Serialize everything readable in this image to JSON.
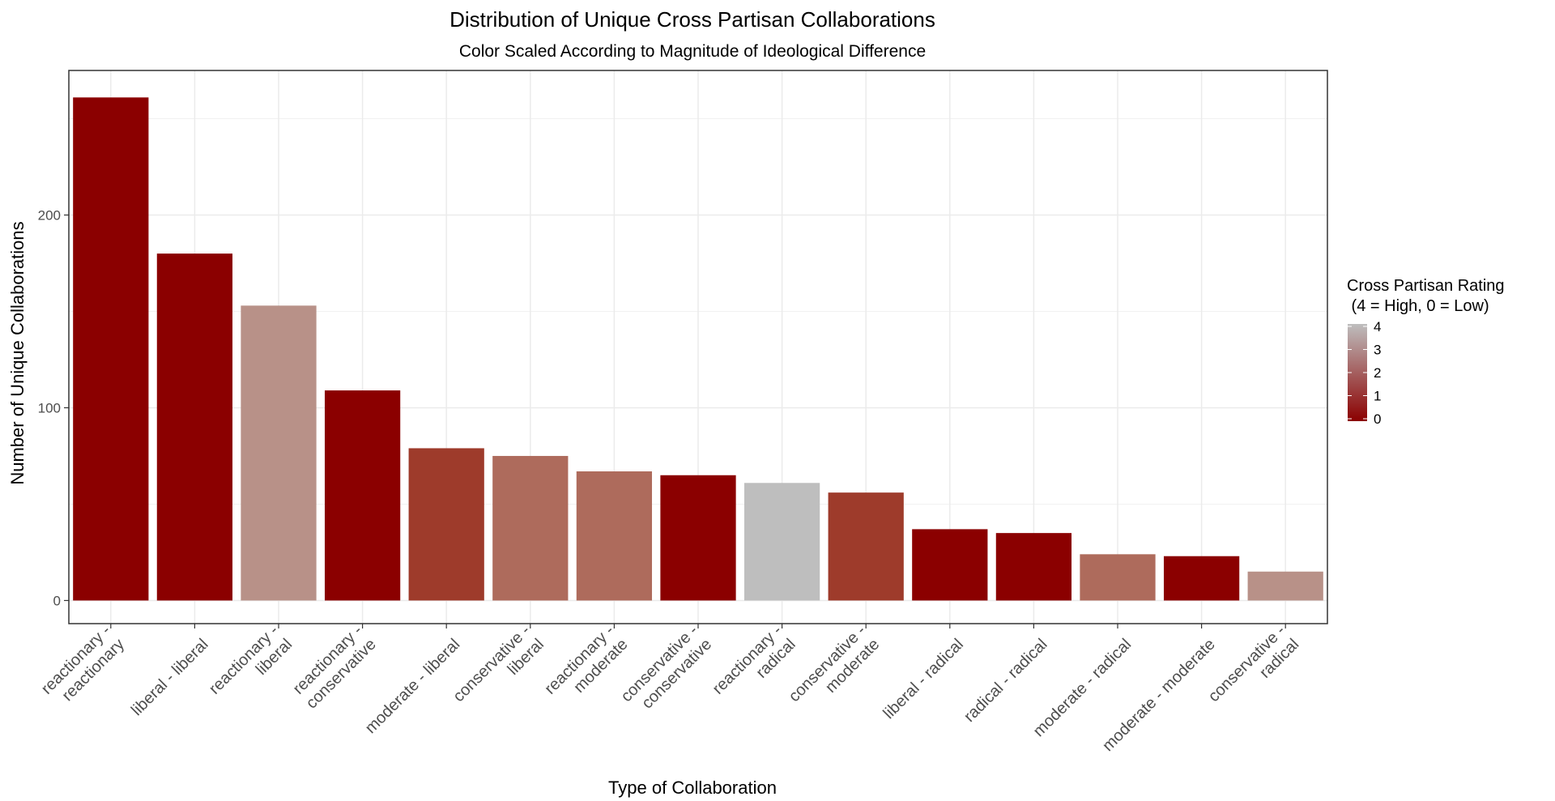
{
  "chart_data": {
    "type": "bar",
    "title": "Distribution of Unique Cross Partisan Collaborations",
    "subtitle": "Color Scaled According to Magnitude of Ideological Difference",
    "xlabel": "Type of Collaboration",
    "ylabel": "Number of Unique Collaborations",
    "ylim": [
      -12,
      275
    ],
    "yticks": [
      0,
      100,
      200
    ],
    "grid": true,
    "categories": [
      [
        "reactionary -",
        "reactionary"
      ],
      [
        "liberal - liberal"
      ],
      [
        "reactionary -",
        "liberal"
      ],
      [
        "reactionary -",
        "conservative"
      ],
      [
        "moderate - liberal"
      ],
      [
        "conservative -",
        "liberal"
      ],
      [
        "reactionary -",
        "moderate"
      ],
      [
        "conservative -",
        "conservative"
      ],
      [
        "reactionary -",
        "radical"
      ],
      [
        "conservative -",
        "moderate"
      ],
      [
        "liberal - radical"
      ],
      [
        "radical - radical"
      ],
      [
        "moderate - radical"
      ],
      [
        "moderate - moderate"
      ],
      [
        "conservative -",
        "radical"
      ]
    ],
    "values": [
      261,
      180,
      153,
      109,
      79,
      75,
      67,
      65,
      61,
      56,
      37,
      35,
      24,
      23,
      15
    ],
    "rating": [
      0,
      0,
      3,
      0,
      1,
      2,
      2,
      0,
      4,
      1,
      0,
      0,
      2,
      0,
      3
    ],
    "legend": {
      "title_lines": [
        "Cross Partisan Rating",
        " (4 = High, 0 = Low)"
      ],
      "ticks": [
        "4",
        "3",
        "2",
        "1",
        "0"
      ],
      "placement": "right",
      "color_low": "#8b0000",
      "color_high": "#bebebe"
    },
    "colors": {
      "0": "#8b0000",
      "1": "#9e3b2b",
      "2": "#ae6b5c",
      "3": "#b89188",
      "4": "#bebebe"
    }
  }
}
